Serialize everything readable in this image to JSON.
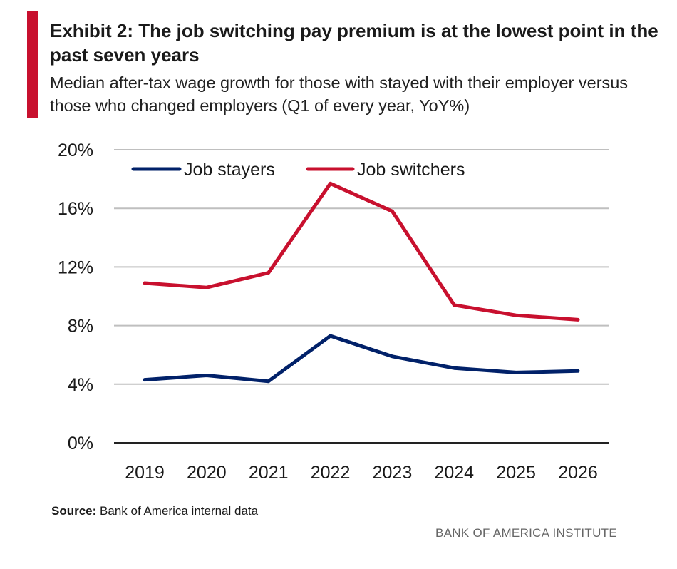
{
  "header": {
    "title": "Exhibit 2: The job switching pay premium is at the lowest point in the past seven years",
    "subtitle": "Median after-tax wage growth for those with stayed with their employer versus those who changed employers (Q1 of every year, YoY%)"
  },
  "footer": {
    "source_label": "Source:",
    "source_text": "Bank of America internal data",
    "brand": "BANK OF AMERICA INSTITUTE"
  },
  "colors": {
    "accent": "#c8102e",
    "stayers": "#012169",
    "switchers": "#c8102e",
    "grid": "#bfbfbf",
    "axis": "#222222"
  },
  "chart_data": {
    "type": "line",
    "x": [
      "2019",
      "2020",
      "2021",
      "2022",
      "2023",
      "2024",
      "2025",
      "2026"
    ],
    "series": [
      {
        "name": "Job stayers",
        "values": [
          4.3,
          4.6,
          4.2,
          7.3,
          5.9,
          5.1,
          4.8,
          4.9
        ]
      },
      {
        "name": "Job switchers",
        "values": [
          10.9,
          10.6,
          11.6,
          17.7,
          15.8,
          9.4,
          8.7,
          8.4
        ]
      }
    ],
    "ylim": [
      0,
      20
    ],
    "yticks": [
      0,
      4,
      8,
      12,
      16,
      20
    ],
    "ytick_labels": [
      "0%",
      "4%",
      "8%",
      "12%",
      "16%",
      "20%"
    ],
    "xlabel": "",
    "ylabel": "",
    "grid": true,
    "legend_position": "top-left"
  }
}
